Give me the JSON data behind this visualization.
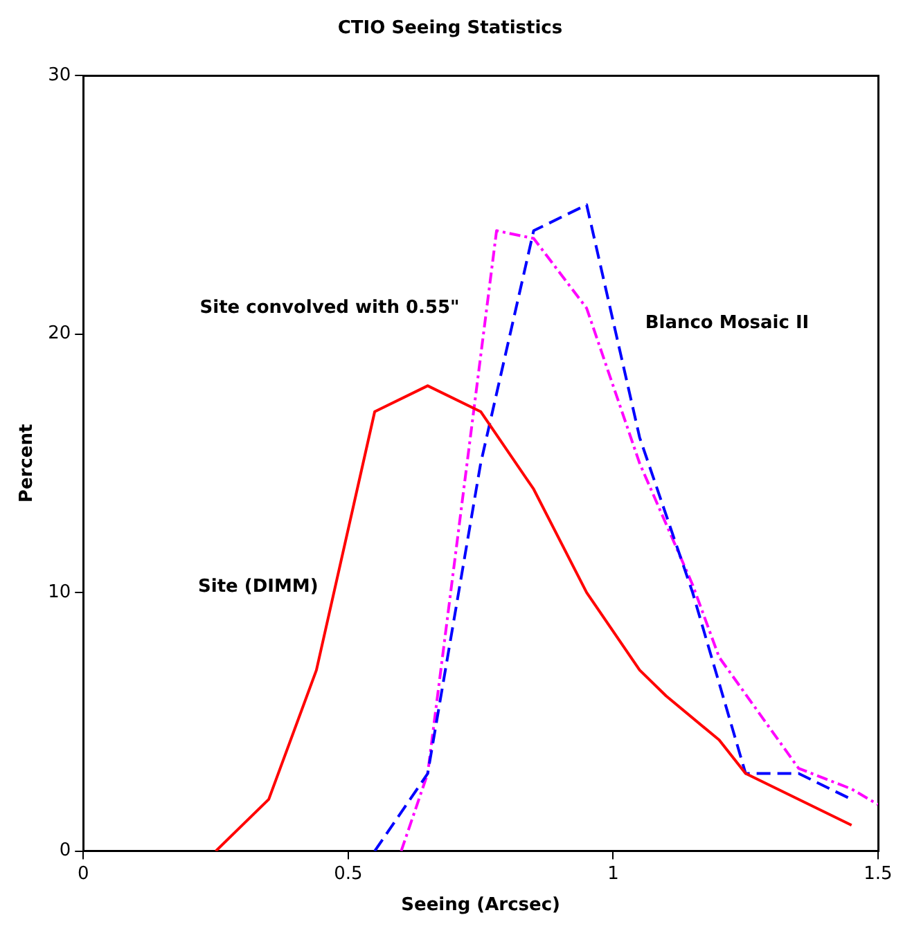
{
  "chart_data": {
    "type": "line",
    "title": "CTIO Seeing Statistics",
    "xlabel": "Seeing (Arcsec)",
    "ylabel": "Percent",
    "xlim": [
      0,
      1.5
    ],
    "xticks": [
      0,
      0.5,
      1,
      1.5
    ],
    "ylim": [
      0,
      30
    ],
    "yticks": [
      0,
      10,
      20,
      30
    ],
    "grid": false,
    "legend": false,
    "marker": "none",
    "series": [
      {
        "name": "Site (DIMM)",
        "color": "#ff0000",
        "line_style": "solid",
        "x": [
          0.25,
          0.35,
          0.44,
          0.55,
          0.65,
          0.75,
          0.85,
          0.95,
          1.05,
          1.1,
          1.2,
          1.25,
          1.45
        ],
        "values": [
          0,
          2,
          7,
          17,
          18,
          17,
          14,
          10,
          7,
          6,
          4.3,
          3,
          1
        ]
      },
      {
        "name": "Blanco Mosaic II",
        "color": "#0000ff",
        "line_style": "dashed",
        "x": [
          0.55,
          0.65,
          0.75,
          0.85,
          0.95,
          1.05,
          1.15,
          1.25,
          1.35,
          1.45
        ],
        "values": [
          0,
          3,
          15,
          24,
          25,
          16,
          10,
          3,
          3,
          2
        ]
      },
      {
        "name": "Site convolved with 0.55\"",
        "color": "#ff00ff",
        "line_style": "dotted",
        "x": [
          0.6,
          0.65,
          0.78,
          0.85,
          0.95,
          1.05,
          1.15,
          1.2,
          1.35,
          1.45,
          1.5
        ],
        "values": [
          0,
          3,
          24,
          23.7,
          21,
          15,
          10.3,
          7.5,
          3.2,
          2.4,
          1.8
        ]
      }
    ]
  }
}
